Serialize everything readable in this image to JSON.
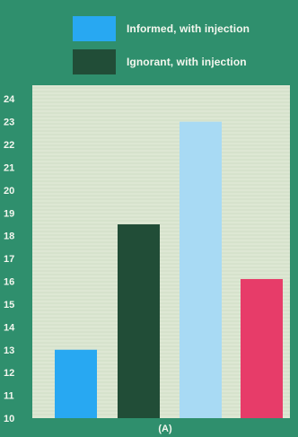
{
  "colors": {
    "background": "#2f8f6d",
    "plot_area": "#dde7d3",
    "informed_with_injection": "#28a8f2",
    "ignorant_with_injection": "#214d37",
    "third_bar": "#a8daf4",
    "fourth_bar": "#e73c69"
  },
  "legend": [
    {
      "label": "Informed, with injection",
      "color": "#28a8f2"
    },
    {
      "label": "Ignorant, with injection",
      "color": "#214d37"
    }
  ],
  "panel_label": "(A)",
  "chart_data": {
    "type": "bar",
    "title": "",
    "xlabel": "(A)",
    "ylabel": "",
    "ylim": [
      10,
      24.6
    ],
    "yticks": [
      10,
      11,
      12,
      13,
      14,
      15,
      16,
      17,
      18,
      19,
      20,
      21,
      22,
      23,
      24
    ],
    "grid": true,
    "legend_placement": "top",
    "bars": [
      {
        "value": 13.0,
        "color": "#28a8f2"
      },
      {
        "value": 18.5,
        "color": "#214d37"
      },
      {
        "value": 23.0,
        "color": "#a8daf4"
      },
      {
        "value": 16.1,
        "color": "#e73c69"
      }
    ]
  }
}
